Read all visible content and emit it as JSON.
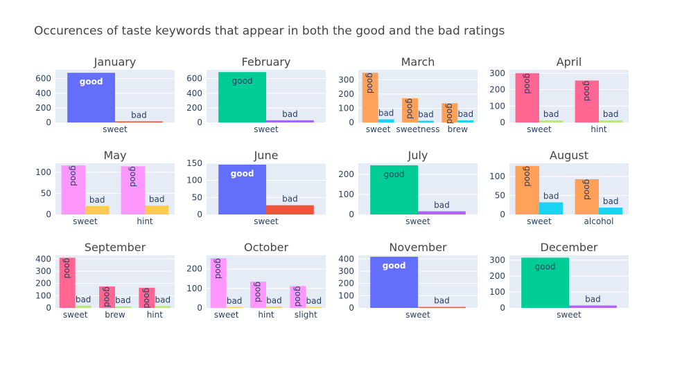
{
  "page": {
    "title": "Occurences of taste keywords that appear in both the good and the bad ratings"
  },
  "theme": {
    "plot_bg": "#e5ecf6",
    "grid": "#ffffff",
    "text": "#2a3f5f",
    "title_text": "#444444"
  },
  "chart_data": [
    {
      "type": "bar",
      "title": "January",
      "categories": [
        "sweet"
      ],
      "ylim": [
        0,
        720
      ],
      "yticks": [
        0,
        200,
        400,
        600
      ],
      "series": [
        {
          "name": "good",
          "values": [
            680
          ],
          "color": "#636efa",
          "label_style": "horizontal-light"
        },
        {
          "name": "bad",
          "values": [
            15
          ],
          "color": "#ef553b"
        }
      ]
    },
    {
      "type": "bar",
      "title": "February",
      "categories": [
        "sweet"
      ],
      "ylim": [
        0,
        720
      ],
      "yticks": [
        0,
        200,
        400,
        600
      ],
      "series": [
        {
          "name": "good",
          "values": [
            690
          ],
          "color": "#00cc96",
          "label_style": "horizontal-dark"
        },
        {
          "name": "bad",
          "values": [
            30
          ],
          "color": "#ab63fa"
        }
      ]
    },
    {
      "type": "bar",
      "title": "March",
      "categories": [
        "sweet",
        "sweetness",
        "brew"
      ],
      "ylim": [
        0,
        370
      ],
      "yticks": [
        0,
        100,
        200,
        300
      ],
      "series": [
        {
          "name": "good",
          "values": [
            350,
            170,
            135
          ],
          "color": "#ffa15a",
          "label_style": "vertical"
        },
        {
          "name": "bad",
          "values": [
            22,
            12,
            15
          ],
          "color": "#19d3f3"
        }
      ]
    },
    {
      "type": "bar",
      "title": "April",
      "categories": [
        "sweet",
        "hint"
      ],
      "ylim": [
        0,
        320
      ],
      "yticks": [
        0,
        100,
        200,
        300
      ],
      "series": [
        {
          "name": "good",
          "values": [
            300,
            255
          ],
          "color": "#ff6692",
          "label_style": "vertical"
        },
        {
          "name": "bad",
          "values": [
            12,
            12
          ],
          "color": "#b6e880"
        }
      ]
    },
    {
      "type": "bar",
      "title": "May",
      "categories": [
        "sweet",
        "hint"
      ],
      "ylim": [
        0,
        121
      ],
      "yticks": [
        0,
        50,
        100
      ],
      "series": [
        {
          "name": "good",
          "values": [
            116,
            114
          ],
          "color": "#ff97ff",
          "label_style": "vertical"
        },
        {
          "name": "bad",
          "values": [
            20,
            21
          ],
          "color": "#fecb52"
        }
      ]
    },
    {
      "type": "bar",
      "title": "June",
      "categories": [
        "sweet"
      ],
      "ylim": [
        0,
        150
      ],
      "yticks": [
        0,
        50,
        100,
        150
      ],
      "series": [
        {
          "name": "good",
          "values": [
            146
          ],
          "color": "#636efa",
          "label_style": "horizontal-light"
        },
        {
          "name": "bad",
          "values": [
            27
          ],
          "color": "#ef553b"
        }
      ]
    },
    {
      "type": "bar",
      "title": "July",
      "categories": [
        "sweet"
      ],
      "ylim": [
        0,
        255
      ],
      "yticks": [
        0,
        100,
        200
      ],
      "series": [
        {
          "name": "good",
          "values": [
            245
          ],
          "color": "#00cc96",
          "label_style": "horizontal-dark"
        },
        {
          "name": "bad",
          "values": [
            16
          ],
          "color": "#ab63fa"
        }
      ]
    },
    {
      "type": "bar",
      "title": "August",
      "categories": [
        "sweet",
        "alcohol"
      ],
      "ylim": [
        0,
        135
      ],
      "yticks": [
        0,
        50,
        100
      ],
      "series": [
        {
          "name": "good",
          "values": [
            128,
            93
          ],
          "color": "#ffa15a",
          "label_style": "vertical"
        },
        {
          "name": "bad",
          "values": [
            32,
            18
          ],
          "color": "#19d3f3"
        }
      ]
    },
    {
      "type": "bar",
      "title": "September",
      "categories": [
        "sweet",
        "brew",
        "hint"
      ],
      "ylim": [
        0,
        430
      ],
      "yticks": [
        0,
        100,
        200,
        300,
        400
      ],
      "series": [
        {
          "name": "good",
          "values": [
            410,
            175,
            165
          ],
          "color": "#ff6692",
          "label_style": "vertical"
        },
        {
          "name": "bad",
          "values": [
            18,
            12,
            15
          ],
          "color": "#b6e880"
        }
      ]
    },
    {
      "type": "bar",
      "title": "October",
      "categories": [
        "sweet",
        "hint",
        "slight"
      ],
      "ylim": [
        0,
        270
      ],
      "yticks": [
        0,
        100,
        200
      ],
      "series": [
        {
          "name": "good",
          "values": [
            255,
            135,
            112
          ],
          "color": "#ff97ff",
          "label_style": "vertical"
        },
        {
          "name": "bad",
          "values": [
            4,
            6,
            4
          ],
          "color": "#fecb52"
        }
      ]
    },
    {
      "type": "bar",
      "title": "November",
      "categories": [
        "sweet"
      ],
      "ylim": [
        0,
        430
      ],
      "yticks": [
        0,
        100,
        200,
        300,
        400
      ],
      "series": [
        {
          "name": "good",
          "values": [
            418
          ],
          "color": "#636efa",
          "label_style": "horizontal-light"
        },
        {
          "name": "bad",
          "values": [
            8
          ],
          "color": "#ef553b"
        }
      ]
    },
    {
      "type": "bar",
      "title": "December",
      "categories": [
        "sweet"
      ],
      "ylim": [
        0,
        330
      ],
      "yticks": [
        0,
        100,
        200,
        300
      ],
      "series": [
        {
          "name": "good",
          "values": [
            315
          ],
          "color": "#00cc96",
          "label_style": "horizontal-dark"
        },
        {
          "name": "bad",
          "values": [
            15
          ],
          "color": "#ab63fa"
        }
      ]
    }
  ]
}
